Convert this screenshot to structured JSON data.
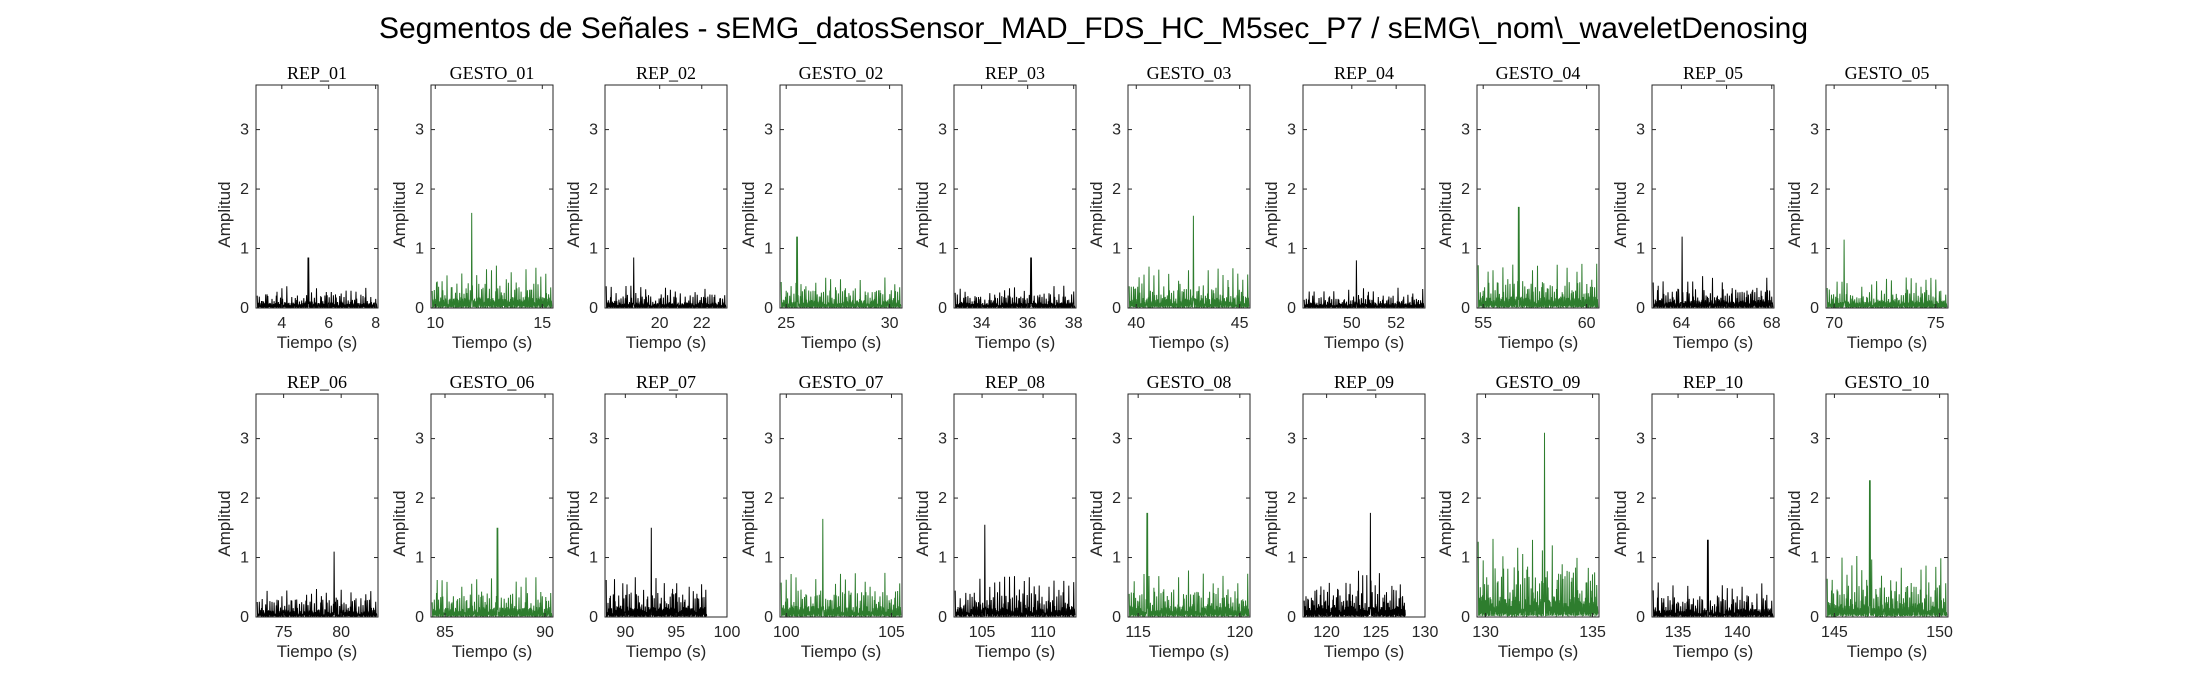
{
  "figure": {
    "title": "Segmentos de Señales - sEMG_datosSensor_MAD_FDS_HC_M5sec_P7 / sEMG\\_nom\\_waveletDenosing",
    "colors": {
      "rep": "#000000",
      "gesto": "#2e7d2e",
      "axis": "#262626"
    }
  },
  "chart_data": [
    {
      "type": "line",
      "title": "REP_01",
      "kind": "rep",
      "xlabel": "Tiempo (s)",
      "ylabel": "Amplitud",
      "xlim": [
        2.9,
        8.1
      ],
      "ylim": [
        0,
        3.75
      ],
      "xticks": [
        4,
        6,
        8
      ],
      "yticks": [
        0,
        1,
        2,
        3
      ],
      "envelope_peak": 0.85
    },
    {
      "type": "line",
      "title": "GESTO_01",
      "kind": "gesto",
      "xlabel": "Tiempo (s)",
      "ylabel": "Amplitud",
      "xlim": [
        9.8,
        15.5
      ],
      "ylim": [
        0,
        3.75
      ],
      "xticks": [
        10,
        15
      ],
      "yticks": [
        0,
        1,
        2,
        3
      ],
      "envelope_peak": 1.6
    },
    {
      "type": "line",
      "title": "REP_02",
      "kind": "rep",
      "xlabel": "Tiempo (s)",
      "ylabel": "Amplitud",
      "xlim": [
        17.4,
        23.2
      ],
      "ylim": [
        0,
        3.75
      ],
      "xticks": [
        20,
        22
      ],
      "yticks": [
        0,
        1,
        2,
        3
      ],
      "envelope_peak": 0.85
    },
    {
      "type": "line",
      "title": "GESTO_02",
      "kind": "gesto",
      "xlabel": "Tiempo (s)",
      "ylabel": "Amplitud",
      "xlim": [
        24.7,
        30.6
      ],
      "ylim": [
        0,
        3.75
      ],
      "xticks": [
        25,
        30
      ],
      "yticks": [
        0,
        1,
        2,
        3
      ],
      "envelope_peak": 1.2
    },
    {
      "type": "line",
      "title": "REP_03",
      "kind": "rep",
      "xlabel": "Tiempo (s)",
      "ylabel": "Amplitud",
      "xlim": [
        32.8,
        38.1
      ],
      "ylim": [
        0,
        3.75
      ],
      "xticks": [
        34,
        36,
        38
      ],
      "yticks": [
        0,
        1,
        2,
        3
      ],
      "envelope_peak": 0.85
    },
    {
      "type": "line",
      "title": "GESTO_03",
      "kind": "gesto",
      "xlabel": "Tiempo (s)",
      "ylabel": "Amplitud",
      "xlim": [
        39.6,
        45.5
      ],
      "ylim": [
        0,
        3.75
      ],
      "xticks": [
        40,
        45
      ],
      "yticks": [
        0,
        1,
        2,
        3
      ],
      "envelope_peak": 1.55
    },
    {
      "type": "line",
      "title": "REP_04",
      "kind": "rep",
      "xlabel": "Tiempo (s)",
      "ylabel": "Amplitud",
      "xlim": [
        47.8,
        53.3
      ],
      "ylim": [
        0,
        3.75
      ],
      "xticks": [
        50,
        52
      ],
      "yticks": [
        0,
        1,
        2,
        3
      ],
      "envelope_peak": 0.8
    },
    {
      "type": "line",
      "title": "GESTO_04",
      "kind": "gesto",
      "xlabel": "Tiempo (s)",
      "ylabel": "Amplitud",
      "xlim": [
        54.7,
        60.6
      ],
      "ylim": [
        0,
        3.75
      ],
      "xticks": [
        55,
        60
      ],
      "yticks": [
        0,
        1,
        2,
        3
      ],
      "envelope_peak": 1.7
    },
    {
      "type": "line",
      "title": "REP_05",
      "kind": "rep",
      "xlabel": "Tiempo (s)",
      "ylabel": "Amplitud",
      "xlim": [
        62.7,
        68.1
      ],
      "ylim": [
        0,
        3.75
      ],
      "xticks": [
        64,
        66,
        68
      ],
      "yticks": [
        0,
        1,
        2,
        3
      ],
      "envelope_peak": 1.2
    },
    {
      "type": "line",
      "title": "GESTO_05",
      "kind": "gesto",
      "xlabel": "Tiempo (s)",
      "ylabel": "Amplitud",
      "xlim": [
        69.6,
        75.6
      ],
      "ylim": [
        0,
        3.75
      ],
      "xticks": [
        70,
        75
      ],
      "yticks": [
        0,
        1,
        2,
        3
      ],
      "envelope_peak": 1.15
    },
    {
      "type": "line",
      "title": "REP_06",
      "kind": "rep",
      "xlabel": "Tiempo (s)",
      "ylabel": "Amplitud",
      "xlim": [
        72.6,
        83.2
      ],
      "ylim": [
        0,
        3.75
      ],
      "xticks": [
        75,
        80
      ],
      "yticks": [
        0,
        1,
        2,
        3
      ],
      "envelope_peak": 1.1
    },
    {
      "type": "line",
      "title": "GESTO_06",
      "kind": "gesto",
      "xlabel": "Tiempo (s)",
      "ylabel": "Amplitud",
      "xlim": [
        84.3,
        90.4
      ],
      "ylim": [
        0,
        3.75
      ],
      "xticks": [
        85,
        90
      ],
      "yticks": [
        0,
        1,
        2,
        3
      ],
      "envelope_peak": 1.5
    },
    {
      "type": "line",
      "title": "REP_07",
      "kind": "rep",
      "xlabel": "Tiempo (s)",
      "ylabel": "Amplitud",
      "xlim": [
        88,
        100
      ],
      "ylim": [
        0,
        3.75
      ],
      "xticks": [
        90,
        95,
        100
      ],
      "yticks": [
        0,
        1,
        2,
        3
      ],
      "envelope_peak": 1.5,
      "data_end": 98
    },
    {
      "type": "line",
      "title": "GESTO_07",
      "kind": "gesto",
      "xlabel": "Tiempo (s)",
      "ylabel": "Amplitud",
      "xlim": [
        99.7,
        105.5
      ],
      "ylim": [
        0,
        3.75
      ],
      "xticks": [
        100,
        105
      ],
      "yticks": [
        0,
        1,
        2,
        3
      ],
      "envelope_peak": 1.65
    },
    {
      "type": "line",
      "title": "REP_08",
      "kind": "rep",
      "xlabel": "Tiempo (s)",
      "ylabel": "Amplitud",
      "xlim": [
        102.7,
        112.7
      ],
      "ylim": [
        0,
        3.75
      ],
      "xticks": [
        105,
        110
      ],
      "yticks": [
        0,
        1,
        2,
        3
      ],
      "envelope_peak": 1.55
    },
    {
      "type": "line",
      "title": "GESTO_08",
      "kind": "gesto",
      "xlabel": "Tiempo (s)",
      "ylabel": "Amplitud",
      "xlim": [
        114.5,
        120.5
      ],
      "ylim": [
        0,
        3.75
      ],
      "xticks": [
        115,
        120
      ],
      "yticks": [
        0,
        1,
        2,
        3
      ],
      "envelope_peak": 1.75
    },
    {
      "type": "line",
      "title": "REP_09",
      "kind": "rep",
      "xlabel": "Tiempo (s)",
      "ylabel": "Amplitud",
      "xlim": [
        117.6,
        130
      ],
      "ylim": [
        0,
        3.75
      ],
      "xticks": [
        120,
        125,
        130
      ],
      "yticks": [
        0,
        1,
        2,
        3
      ],
      "envelope_peak": 1.75,
      "data_end": 128
    },
    {
      "type": "line",
      "title": "GESTO_09",
      "kind": "gesto",
      "xlabel": "Tiempo (s)",
      "ylabel": "Amplitud",
      "xlim": [
        129.6,
        135.3
      ],
      "ylim": [
        0,
        3.75
      ],
      "xticks": [
        130,
        135
      ],
      "yticks": [
        0,
        1,
        2,
        3
      ],
      "envelope_peak": 3.1
    },
    {
      "type": "line",
      "title": "REP_10",
      "kind": "rep",
      "xlabel": "Tiempo (s)",
      "ylabel": "Amplitud",
      "xlim": [
        132.8,
        143.1
      ],
      "ylim": [
        0,
        3.75
      ],
      "xticks": [
        135,
        140
      ],
      "yticks": [
        0,
        1,
        2,
        3
      ],
      "envelope_peak": 1.3
    },
    {
      "type": "line",
      "title": "GESTO_10",
      "kind": "gesto",
      "xlabel": "Tiempo (s)",
      "ylabel": "Amplitud",
      "xlim": [
        144.6,
        150.4
      ],
      "ylim": [
        0,
        3.75
      ],
      "xticks": [
        145,
        150
      ],
      "yticks": [
        0,
        1,
        2,
        3
      ],
      "envelope_peak": 2.3
    }
  ]
}
